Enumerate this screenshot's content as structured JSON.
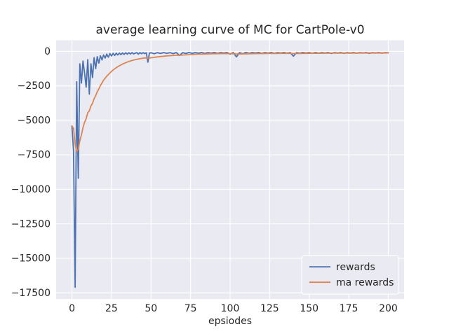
{
  "chart_data": {
    "type": "line",
    "title": "average learning curve of MC for CartPole-v0",
    "xlabel": "epsiodes",
    "ylabel": "",
    "grid": true,
    "xlim": [
      -10,
      210
    ],
    "ylim": [
      -17952,
      802
    ],
    "xticks": [
      {
        "v": 0,
        "label": "0"
      },
      {
        "v": 25,
        "label": "25"
      },
      {
        "v": 50,
        "label": "50"
      },
      {
        "v": 75,
        "label": "75"
      },
      {
        "v": 100,
        "label": "100"
      },
      {
        "v": 125,
        "label": "125"
      },
      {
        "v": 150,
        "label": "150"
      },
      {
        "v": 175,
        "label": "175"
      },
      {
        "v": 200,
        "label": "200"
      }
    ],
    "yticks": [
      {
        "v": 0,
        "label": "0"
      },
      {
        "v": -2500,
        "label": "−2500"
      },
      {
        "v": -5000,
        "label": "−5000"
      },
      {
        "v": -7500,
        "label": "−7500"
      },
      {
        "v": -10000,
        "label": "−10000"
      },
      {
        "v": -12500,
        "label": "−12500"
      },
      {
        "v": -15000,
        "label": "−15000"
      },
      {
        "v": -17500,
        "label": "−17500"
      }
    ],
    "colors": {
      "fig_bg": "#FFFFFF",
      "axes_bg": "#EAEAF2",
      "grid": "#FFFFFF",
      "text": "#262626",
      "rewards": "#4C72B0",
      "ma_rewards": "#DD8452"
    },
    "legend": {
      "position": "lower right",
      "entries": [
        {
          "label": "rewards",
          "color": "#4C72B0"
        },
        {
          "label": "ma rewards",
          "color": "#DD8452"
        }
      ]
    },
    "series": [
      {
        "name": "rewards",
        "color": "#4C72B0",
        "points": [
          [
            0,
            -5400
          ],
          [
            1,
            -7200
          ],
          [
            2,
            -17100
          ],
          [
            3,
            -2200
          ],
          [
            4,
            -9200
          ],
          [
            5,
            -900
          ],
          [
            6,
            -2300
          ],
          [
            7,
            -700
          ],
          [
            8,
            -1600
          ],
          [
            9,
            -2600
          ],
          [
            10,
            -600
          ],
          [
            11,
            -3100
          ],
          [
            12,
            -900
          ],
          [
            13,
            -1900
          ],
          [
            14,
            -450
          ],
          [
            15,
            -1250
          ],
          [
            16,
            -380
          ],
          [
            17,
            -850
          ],
          [
            18,
            -320
          ],
          [
            19,
            -620
          ],
          [
            20,
            -260
          ],
          [
            21,
            -480
          ],
          [
            22,
            -200
          ],
          [
            23,
            -420
          ],
          [
            24,
            -160
          ],
          [
            25,
            -330
          ],
          [
            26,
            -140
          ],
          [
            27,
            -300
          ],
          [
            28,
            -130
          ],
          [
            29,
            -260
          ],
          [
            30,
            -120
          ],
          [
            31,
            -240
          ],
          [
            32,
            -110
          ],
          [
            33,
            -220
          ],
          [
            34,
            -100
          ],
          [
            35,
            -200
          ],
          [
            36,
            -95
          ],
          [
            37,
            -190
          ],
          [
            38,
            -90
          ],
          [
            39,
            -180
          ],
          [
            40,
            -130
          ],
          [
            41,
            -90
          ],
          [
            42,
            -200
          ],
          [
            43,
            -85
          ],
          [
            44,
            -170
          ],
          [
            45,
            -90
          ],
          [
            46,
            -160
          ],
          [
            47,
            -100
          ],
          [
            48,
            -780
          ],
          [
            49,
            -120
          ],
          [
            50,
            -100
          ],
          [
            52,
            -170
          ],
          [
            54,
            -90
          ],
          [
            56,
            -150
          ],
          [
            58,
            -85
          ],
          [
            60,
            -140
          ],
          [
            62,
            -90
          ],
          [
            64,
            -160
          ],
          [
            66,
            -85
          ],
          [
            68,
            -300
          ],
          [
            70,
            -90
          ],
          [
            72,
            -150
          ],
          [
            74,
            -80
          ],
          [
            76,
            -140
          ],
          [
            78,
            -85
          ],
          [
            80,
            -130
          ],
          [
            82,
            -80
          ],
          [
            84,
            -150
          ],
          [
            86,
            -85
          ],
          [
            88,
            -130
          ],
          [
            90,
            -80
          ],
          [
            92,
            -140
          ],
          [
            94,
            -85
          ],
          [
            96,
            -120
          ],
          [
            98,
            -80
          ],
          [
            100,
            -200
          ],
          [
            102,
            -90
          ],
          [
            104,
            -400
          ],
          [
            106,
            -90
          ],
          [
            108,
            -180
          ],
          [
            110,
            -80
          ],
          [
            112,
            -140
          ],
          [
            114,
            -85
          ],
          [
            116,
            -120
          ],
          [
            118,
            -80
          ],
          [
            120,
            -150
          ],
          [
            122,
            -85
          ],
          [
            124,
            -130
          ],
          [
            126,
            -80
          ],
          [
            128,
            -140
          ],
          [
            130,
            -85
          ],
          [
            132,
            -120
          ],
          [
            134,
            -80
          ],
          [
            136,
            -130
          ],
          [
            138,
            -85
          ],
          [
            140,
            -350
          ],
          [
            142,
            -90
          ],
          [
            144,
            -130
          ],
          [
            146,
            -80
          ],
          [
            148,
            -120
          ],
          [
            150,
            -85
          ],
          [
            152,
            -140
          ],
          [
            154,
            -80
          ],
          [
            156,
            -130
          ],
          [
            158,
            -85
          ],
          [
            160,
            -120
          ],
          [
            162,
            -80
          ],
          [
            164,
            -150
          ],
          [
            166,
            -85
          ],
          [
            168,
            -120
          ],
          [
            170,
            -80
          ],
          [
            172,
            -140
          ],
          [
            174,
            -85
          ],
          [
            176,
            -120
          ],
          [
            178,
            -80
          ],
          [
            180,
            -130
          ],
          [
            182,
            -85
          ],
          [
            184,
            -120
          ],
          [
            186,
            -80
          ],
          [
            188,
            -140
          ],
          [
            190,
            -85
          ],
          [
            192,
            -120
          ],
          [
            194,
            -80
          ],
          [
            196,
            -130
          ],
          [
            198,
            -85
          ],
          [
            200,
            -100
          ]
        ]
      },
      {
        "name": "ma rewards",
        "color": "#DD8452",
        "points": [
          [
            0,
            -5400
          ],
          [
            1,
            -5580
          ],
          [
            2,
            -6730
          ],
          [
            3,
            -7280
          ],
          [
            4,
            -7100
          ],
          [
            5,
            -6480
          ],
          [
            6,
            -6060
          ],
          [
            7,
            -5520
          ],
          [
            8,
            -5130
          ],
          [
            9,
            -4880
          ],
          [
            10,
            -4450
          ],
          [
            11,
            -4310
          ],
          [
            12,
            -3970
          ],
          [
            13,
            -3760
          ],
          [
            14,
            -3430
          ],
          [
            15,
            -3210
          ],
          [
            16,
            -2930
          ],
          [
            17,
            -2720
          ],
          [
            18,
            -2480
          ],
          [
            19,
            -2290
          ],
          [
            20,
            -2090
          ],
          [
            22,
            -1800
          ],
          [
            24,
            -1560
          ],
          [
            26,
            -1350
          ],
          [
            28,
            -1180
          ],
          [
            30,
            -1040
          ],
          [
            32,
            -920
          ],
          [
            34,
            -820
          ],
          [
            36,
            -730
          ],
          [
            38,
            -660
          ],
          [
            40,
            -600
          ],
          [
            42,
            -560
          ],
          [
            44,
            -510
          ],
          [
            46,
            -470
          ],
          [
            48,
            -500
          ],
          [
            50,
            -460
          ],
          [
            52,
            -430
          ],
          [
            54,
            -400
          ],
          [
            56,
            -375
          ],
          [
            58,
            -350
          ],
          [
            60,
            -330
          ],
          [
            62,
            -310
          ],
          [
            64,
            -295
          ],
          [
            66,
            -280
          ],
          [
            68,
            -282
          ],
          [
            70,
            -265
          ],
          [
            72,
            -255
          ],
          [
            74,
            -240
          ],
          [
            76,
            -230
          ],
          [
            78,
            -215
          ],
          [
            80,
            -205
          ],
          [
            84,
            -190
          ],
          [
            88,
            -175
          ],
          [
            92,
            -165
          ],
          [
            96,
            -155
          ],
          [
            100,
            -160
          ],
          [
            104,
            -185
          ],
          [
            108,
            -180
          ],
          [
            112,
            -170
          ],
          [
            116,
            -160
          ],
          [
            120,
            -155
          ],
          [
            124,
            -150
          ],
          [
            128,
            -145
          ],
          [
            132,
            -140
          ],
          [
            136,
            -135
          ],
          [
            140,
            -155
          ],
          [
            144,
            -150
          ],
          [
            148,
            -142
          ],
          [
            152,
            -138
          ],
          [
            156,
            -135
          ],
          [
            160,
            -130
          ],
          [
            164,
            -128
          ],
          [
            168,
            -125
          ],
          [
            172,
            -124
          ],
          [
            176,
            -122
          ],
          [
            180,
            -120
          ],
          [
            184,
            -118
          ],
          [
            188,
            -118
          ],
          [
            192,
            -116
          ],
          [
            196,
            -114
          ],
          [
            200,
            -112
          ]
        ]
      }
    ]
  }
}
